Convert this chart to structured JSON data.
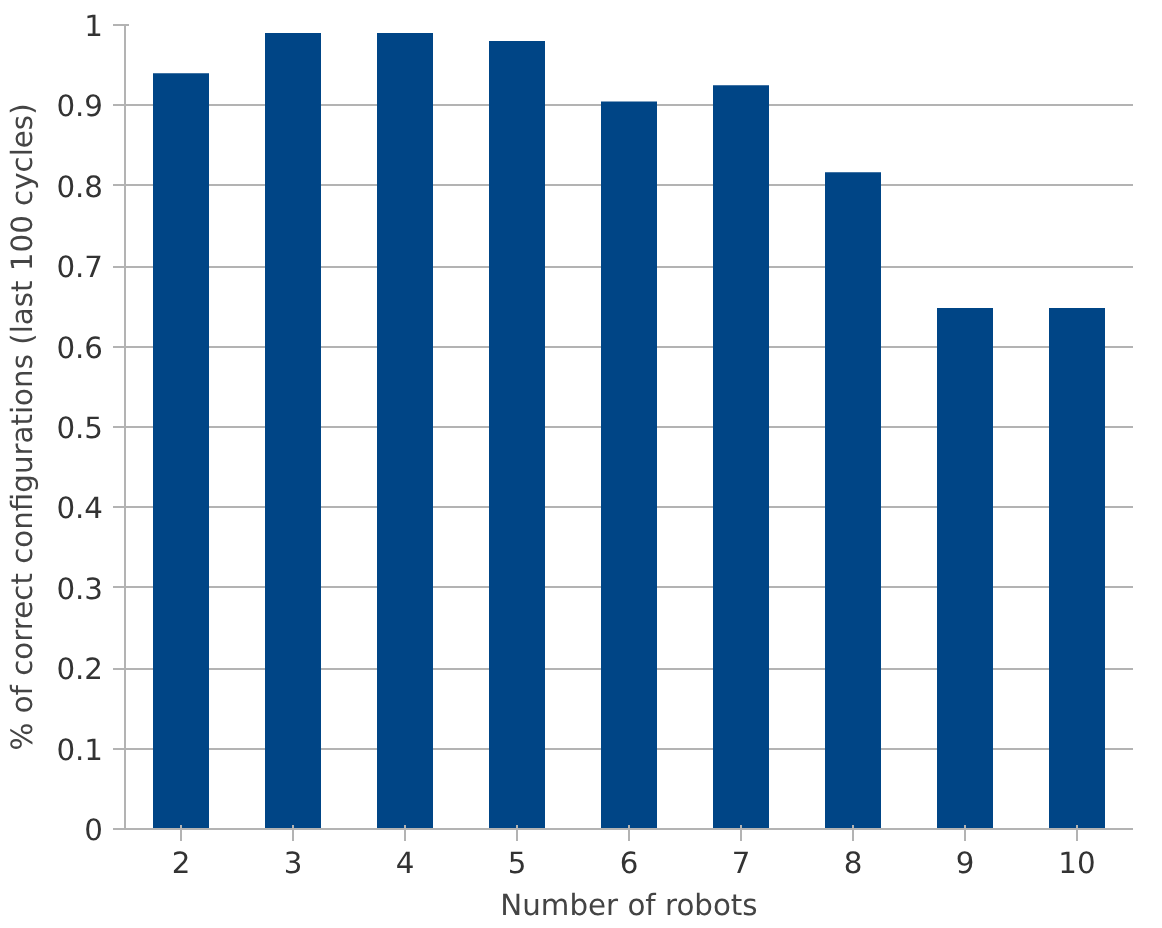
{
  "chart_data": {
    "type": "bar",
    "xlabel": "Number of robots",
    "ylabel": "% of correct configurations (last 100 cycles)",
    "categories": [
      "2",
      "3",
      "4",
      "5",
      "6",
      "7",
      "8",
      "9",
      "10"
    ],
    "values": [
      0.94,
      0.99,
      0.99,
      0.98,
      0.905,
      0.925,
      0.817,
      0.648,
      0.648
    ],
    "color": "#004586",
    "ylim": [
      0,
      1
    ],
    "yticks": [
      0,
      0.1,
      0.2,
      0.3,
      0.4,
      0.5,
      0.6,
      0.7,
      0.8,
      0.9,
      1
    ],
    "grid": "y"
  }
}
